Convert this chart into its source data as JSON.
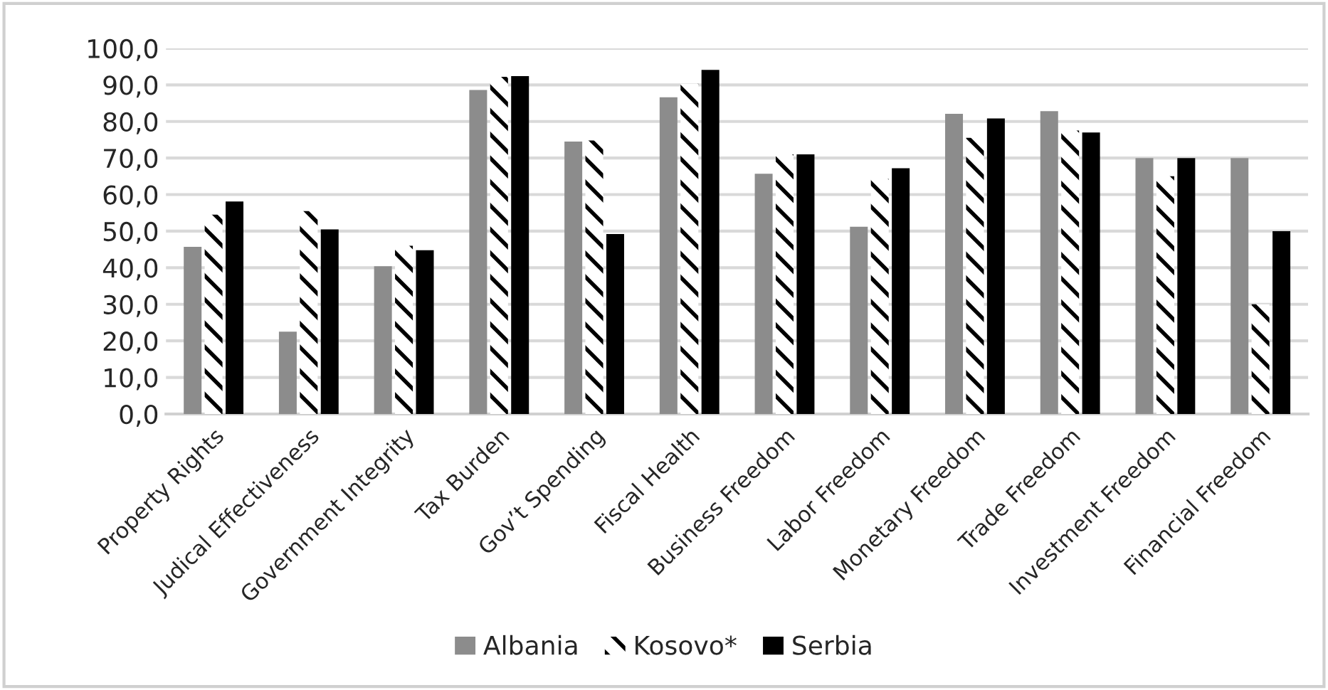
{
  "chart_data": {
    "type": "bar",
    "categories": [
      "Property Rights",
      "Judical Effectiveness",
      "Government Integrity",
      "Tax Burden",
      "Gov’t Spending",
      "Fiscal Health",
      "Business Freedom",
      "Labor Freedom",
      "Monetary Freedom",
      "Trade Freedom",
      "Investment Freedom",
      "Financial Freedom"
    ],
    "series": [
      {
        "name": "Albania",
        "color": "#8c8c8c",
        "values": [
          45.7,
          22.5,
          40.4,
          88.6,
          74.5,
          86.6,
          65.7,
          51.2,
          82.1,
          82.8,
          70,
          70
        ]
      },
      {
        "name": "Kosovo*",
        "color": "#ffffff",
        "values": [
          54.5,
          55.5,
          46,
          92.2,
          74.8,
          90.3,
          71,
          64.3,
          75.5,
          77.5,
          65,
          30
        ]
      },
      {
        "name": "Serbia",
        "color": "#000000",
        "values": [
          58.1,
          50.5,
          44.8,
          92.4,
          49.2,
          94.1,
          71,
          67.2,
          80.8,
          77,
          70,
          50
        ]
      }
    ],
    "ylim": [
      0,
      100
    ],
    "yticks": [
      {
        "value": 0,
        "label": "0,0"
      },
      {
        "value": 10,
        "label": "10,0"
      },
      {
        "value": 20,
        "label": "20,0"
      },
      {
        "value": 30,
        "label": "30,0"
      },
      {
        "value": 40,
        "label": "40,0"
      },
      {
        "value": 50,
        "label": "50,0"
      },
      {
        "value": 60,
        "label": "60,0"
      },
      {
        "value": 70,
        "label": "70,0"
      },
      {
        "value": 80,
        "label": "80,0"
      },
      {
        "value": 90,
        "label": "90,0"
      },
      {
        "value": 100,
        "label": "100,0"
      }
    ],
    "grid": "y",
    "legend": "bottom"
  }
}
